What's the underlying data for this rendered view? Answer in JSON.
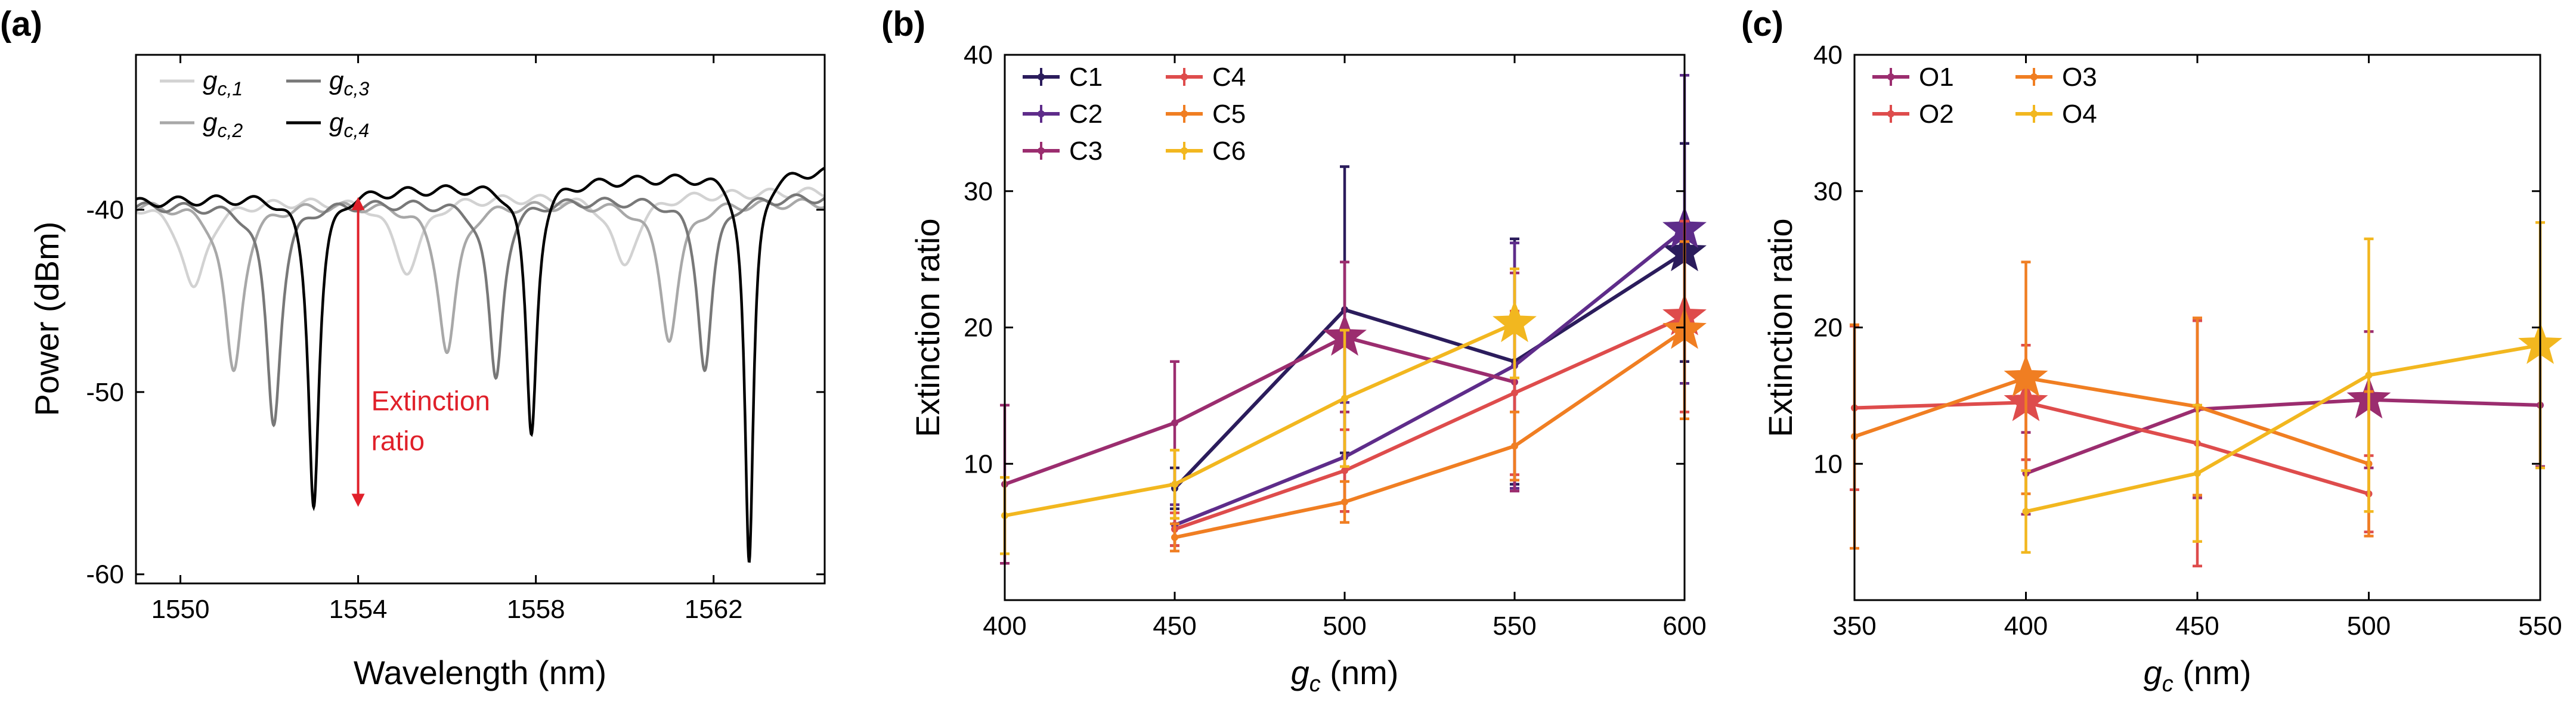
{
  "chart_data": [
    {
      "panel": "(a)",
      "type": "line",
      "title": "",
      "xlabel": "Wavelength (nm)",
      "ylabel": "Power (dBm)",
      "xlim": [
        1549,
        1564.5
      ],
      "ylim": [
        -60.5,
        -31.5
      ],
      "xticks": [
        1550,
        1554,
        1558,
        1562
      ],
      "xtick_labels": [
        "1550",
        "1554",
        "1558",
        "1562"
      ],
      "yticks": [
        -60,
        -50,
        -40
      ],
      "ytick_labels": [
        "-60",
        "-50",
        "-40"
      ],
      "legend": {
        "position": "top-left",
        "entries": [
          {
            "base": "g",
            "sub": "c,1",
            "color": "#d2d2d2"
          },
          {
            "base": "g",
            "sub": "c,2",
            "color": "#a8a8a8"
          },
          {
            "base": "g",
            "sub": "c,3",
            "color": "#787878"
          },
          {
            "base": "g",
            "sub": "c,4",
            "color": "#000000"
          }
        ]
      },
      "series": [
        {
          "name": "g_c,1",
          "color": "#d2d2d2",
          "baseline_start": -39.6,
          "baseline_end": -39.0,
          "dips": [
            {
              "x": 1550.3,
              "depth": -44.2,
              "width": 0.35
            },
            {
              "x": 1555.1,
              "depth": -43.5,
              "width": 0.35
            },
            {
              "x": 1560.0,
              "depth": -43.0,
              "width": 0.35
            }
          ]
        },
        {
          "name": "g_c,2",
          "color": "#a8a8a8",
          "baseline_start": -39.7,
          "baseline_end": -39.6,
          "dips": [
            {
              "x": 1551.2,
              "depth": -48.8,
              "width": 0.25
            },
            {
              "x": 1556.0,
              "depth": -47.8,
              "width": 0.25
            },
            {
              "x": 1561.0,
              "depth": -47.2,
              "width": 0.25
            }
          ]
        },
        {
          "name": "g_c,3",
          "color": "#787878",
          "baseline_start": -39.8,
          "baseline_end": -39.3,
          "dips": [
            {
              "x": 1552.1,
              "depth": -51.8,
              "width": 0.2
            },
            {
              "x": 1557.1,
              "depth": -49.2,
              "width": 0.2
            },
            {
              "x": 1561.8,
              "depth": -48.8,
              "width": 0.2
            }
          ]
        },
        {
          "name": "g_c,4",
          "color": "#000000",
          "baseline_start": -39.6,
          "baseline_end": -37.8,
          "dips": [
            {
              "x": 1553.0,
              "depth": -56.3,
              "width": 0.15
            },
            {
              "x": 1557.9,
              "depth": -52.3,
              "width": 0.15
            },
            {
              "x": 1562.8,
              "depth": -59.3,
              "width": 0.12
            }
          ]
        }
      ],
      "annotation": {
        "lines": [
          "Extinction",
          "ratio"
        ],
        "color": "#e0202a",
        "x": 1554,
        "y_top": -39.3,
        "y_bottom": -56.3
      }
    },
    {
      "panel": "(b)",
      "type": "line",
      "title": "",
      "xlabel_base": "g",
      "xlabel_sub": "c",
      "xlabel_rest": " (nm)",
      "ylabel": "Extinction ratio",
      "xlim": [
        400,
        600
      ],
      "ylim": [
        0,
        40
      ],
      "xticks": [
        400,
        450,
        500,
        550,
        600
      ],
      "xtick_labels": [
        "400",
        "450",
        "500",
        "550",
        "600"
      ],
      "yticks": [
        10,
        20,
        30,
        40
      ],
      "ytick_labels": [
        "10",
        "20",
        "30",
        "40"
      ],
      "legend_position": "top-left",
      "series": [
        {
          "name": "C1",
          "color": "#2b1c5c",
          "x": [
            450,
            500,
            550,
            600
          ],
          "y": [
            8.2,
            21.3,
            17.5,
            25.5
          ],
          "err": [
            1.5,
            10.5,
            9.0,
            8.0
          ],
          "star_x": 600
        },
        {
          "name": "C2",
          "color": "#5e2c8a",
          "x": [
            450,
            500,
            550,
            600
          ],
          "y": [
            5.5,
            10.5,
            17.2,
            27.2
          ],
          "err": [
            1.5,
            4.0,
            9.0,
            11.3
          ],
          "star_x": 600
        },
        {
          "name": "C3",
          "color": "#9b2d6f",
          "x": [
            400,
            450,
            500,
            550
          ],
          "y": [
            8.5,
            13.0,
            19.3,
            16.0
          ],
          "err": [
            5.8,
            4.5,
            5.5,
            8.0
          ],
          "star_x": 500
        },
        {
          "name": "C4",
          "color": "#de4c4c",
          "x": [
            450,
            500,
            550,
            600
          ],
          "y": [
            5.2,
            9.5,
            15.2,
            20.8
          ],
          "err": [
            1.2,
            3.0,
            6.0,
            7.0
          ],
          "star_x": 600
        },
        {
          "name": "C5",
          "color": "#f07e22",
          "x": [
            450,
            500,
            550,
            600
          ],
          "y": [
            4.6,
            7.2,
            11.3,
            19.8
          ],
          "err": [
            1.0,
            1.5,
            2.5,
            6.5
          ],
          "star_x": 600
        },
        {
          "name": "C6",
          "color": "#f2b71f",
          "x": [
            400,
            450,
            500,
            550
          ],
          "y": [
            6.2,
            8.5,
            14.8,
            20.3
          ],
          "err": [
            2.8,
            2.5,
            5.0,
            4.0
          ],
          "star_x": 550
        }
      ]
    },
    {
      "panel": "(c)",
      "type": "line",
      "title": "",
      "xlabel_base": "g",
      "xlabel_sub": "c",
      "xlabel_rest": " (nm)",
      "ylabel": "Extinction ratio",
      "xlim": [
        350,
        550
      ],
      "ylim": [
        0,
        40
      ],
      "xticks": [
        350,
        400,
        450,
        500,
        550
      ],
      "xtick_labels": [
        "350",
        "400",
        "450",
        "500",
        "550"
      ],
      "yticks": [
        10,
        20,
        30,
        40
      ],
      "ytick_labels": [
        "10",
        "20",
        "30",
        "40"
      ],
      "legend_position": "top-left",
      "series": [
        {
          "name": "O1",
          "color": "#9b2d6f",
          "x": [
            400,
            450,
            500,
            550
          ],
          "y": [
            9.3,
            14.0,
            14.7,
            14.3
          ],
          "err": [
            3.0,
            6.5,
            5.0,
            4.5
          ],
          "star_x": 500
        },
        {
          "name": "O2",
          "color": "#de4c4c",
          "x": [
            350,
            400,
            450,
            500
          ],
          "y": [
            14.1,
            14.5,
            11.5,
            7.8
          ],
          "err": [
            6.0,
            4.2,
            9.0,
            2.8
          ],
          "star_x": 400
        },
        {
          "name": "O3",
          "color": "#f07e22",
          "x": [
            350,
            400,
            450,
            500
          ],
          "y": [
            12.0,
            16.3,
            14.2,
            10.0
          ],
          "err": [
            8.2,
            8.5,
            6.5,
            5.3
          ],
          "star_x": 400
        },
        {
          "name": "O4",
          "color": "#f2b71f",
          "x": [
            400,
            450,
            500,
            550
          ],
          "y": [
            6.5,
            9.3,
            16.5,
            18.7
          ],
          "err": [
            3.0,
            5.0,
            10.0,
            9.0
          ],
          "star_x": 550
        }
      ]
    }
  ]
}
